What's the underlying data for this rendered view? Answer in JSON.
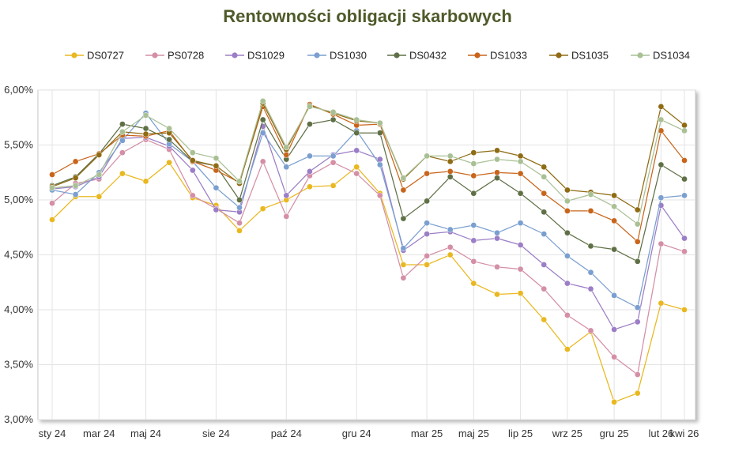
{
  "chart_data": {
    "type": "line",
    "title": "Rentowności obligacji skarbowych",
    "xlabel": "",
    "ylabel": "",
    "ylim": [
      3.0,
      6.0
    ],
    "yticks": [
      "3,00%",
      "3,50%",
      "4,00%",
      "4,50%",
      "5,00%",
      "5,50%",
      "6,00%"
    ],
    "xtick_labels": [
      "sty 24",
      "mar 24",
      "maj 24",
      "sie 24",
      "paź 24",
      "gru 24",
      "mar 25",
      "maj 25",
      "lip 25",
      "wrz 25",
      "gru 25",
      "lut 26",
      "kwi 26"
    ],
    "grid": "on",
    "legend_position": "top",
    "series": [
      {
        "name": "DS0727",
        "color": "#e9b820",
        "values": [
          4.82,
          5.03,
          5.03,
          5.24,
          5.17,
          5.34,
          5.02,
          4.95,
          4.72,
          4.92,
          5.0,
          5.12,
          5.13,
          5.3,
          5.06,
          4.41,
          4.41,
          4.5,
          4.24,
          4.14,
          4.15,
          3.91,
          3.64,
          3.8,
          3.16,
          3.24,
          4.06,
          4.0
        ]
      },
      {
        "name": "PS0728",
        "color": "#d48fa6",
        "values": [
          4.97,
          5.15,
          5.19,
          5.43,
          5.55,
          5.46,
          5.04,
          4.92,
          4.79,
          5.35,
          4.85,
          5.22,
          5.34,
          5.24,
          5.04,
          4.29,
          4.49,
          4.57,
          4.44,
          4.39,
          4.37,
          4.19,
          3.95,
          3.81,
          3.57,
          3.41,
          4.6,
          4.53
        ]
      },
      {
        "name": "DS1029",
        "color": "#9b7ec6",
        "values": [
          5.1,
          5.12,
          5.21,
          5.56,
          5.57,
          5.49,
          5.27,
          4.91,
          4.89,
          5.67,
          5.04,
          5.26,
          5.41,
          5.45,
          5.37,
          4.54,
          4.69,
          4.71,
          4.63,
          4.65,
          4.59,
          4.41,
          4.24,
          4.19,
          3.82,
          3.89,
          4.95,
          4.65
        ]
      },
      {
        "name": "DS1030",
        "color": "#7a9fd0",
        "values": [
          5.09,
          5.05,
          5.25,
          5.54,
          5.79,
          5.51,
          5.35,
          5.11,
          4.93,
          5.61,
          5.3,
          5.4,
          5.4,
          5.63,
          5.32,
          4.56,
          4.79,
          4.73,
          4.77,
          4.7,
          4.79,
          4.69,
          4.49,
          4.34,
          4.13,
          4.02,
          5.02,
          5.04
        ]
      },
      {
        "name": "DS0432",
        "color": "#5f7046",
        "values": [
          5.13,
          5.21,
          5.42,
          5.69,
          5.65,
          5.55,
          5.35,
          5.31,
          5.0,
          5.73,
          5.37,
          5.69,
          5.73,
          5.61,
          5.61,
          4.83,
          4.99,
          5.21,
          5.06,
          5.2,
          5.06,
          4.89,
          4.7,
          4.58,
          4.55,
          4.44,
          5.32,
          5.19
        ]
      },
      {
        "name": "DS1033",
        "color": "#c8651b",
        "values": [
          5.23,
          5.35,
          5.42,
          5.59,
          5.58,
          5.63,
          5.35,
          5.27,
          5.16,
          5.85,
          5.41,
          5.87,
          5.78,
          5.68,
          5.69,
          5.09,
          5.24,
          5.26,
          5.22,
          5.25,
          5.24,
          5.06,
          4.9,
          4.9,
          4.81,
          4.62,
          5.63,
          5.36
        ]
      },
      {
        "name": "DS1035",
        "color": "#8f6b14",
        "values": [
          5.12,
          5.2,
          5.41,
          5.62,
          5.6,
          5.61,
          5.36,
          5.31,
          5.15,
          5.88,
          5.46,
          5.86,
          5.79,
          5.72,
          5.7,
          5.19,
          5.4,
          5.35,
          5.43,
          5.45,
          5.4,
          5.3,
          5.09,
          5.07,
          5.04,
          4.91,
          5.85,
          5.68
        ]
      },
      {
        "name": "DS1034",
        "color": "#a9c095",
        "values": [
          5.11,
          5.13,
          5.23,
          5.62,
          5.77,
          5.65,
          5.43,
          5.38,
          5.17,
          5.9,
          5.48,
          5.85,
          5.8,
          5.73,
          5.7,
          5.2,
          5.4,
          5.4,
          5.33,
          5.37,
          5.35,
          5.21,
          4.99,
          5.05,
          4.94,
          4.78,
          5.73,
          5.63
        ]
      }
    ]
  }
}
